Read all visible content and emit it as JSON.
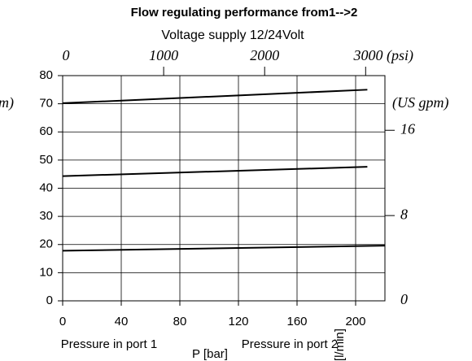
{
  "chart_data": {
    "type": "line",
    "title": "Flow regulating performance from1-->2",
    "subtitle": "Voltage supply 12/24Volt",
    "x_label": "P [bar]",
    "y_label": "Q [l/min]",
    "y_label_cropped": "m)",
    "y2_label": "(US gpm)",
    "annotations": [
      "Pressure in port 1",
      "Pressure in port 2"
    ],
    "xlim": [
      0,
      220
    ],
    "xticks": [
      0,
      40,
      80,
      120,
      160,
      200
    ],
    "ylim": [
      0,
      80
    ],
    "yticks": [
      0,
      10,
      20,
      30,
      40,
      50,
      60,
      70,
      80
    ],
    "x2lim": [
      0,
      3191
    ],
    "x2ticks": [
      0,
      1000,
      2000,
      {
        "value": 3000,
        "label": "3000 (psi)"
      }
    ],
    "y2lim": [
      0,
      21.13
    ],
    "y2ticks": [
      0,
      8,
      16
    ],
    "grid": true,
    "series": [
      {
        "color": "#000000",
        "x": [
          0,
          208
        ],
        "values": [
          70.2,
          75
        ]
      },
      {
        "color": "#000000",
        "x": [
          0,
          208
        ],
        "values": [
          44.3,
          47.6
        ]
      },
      {
        "color": "#000000",
        "x": [
          0,
          220
        ],
        "values": [
          17.8,
          19.6
        ]
      }
    ]
  }
}
